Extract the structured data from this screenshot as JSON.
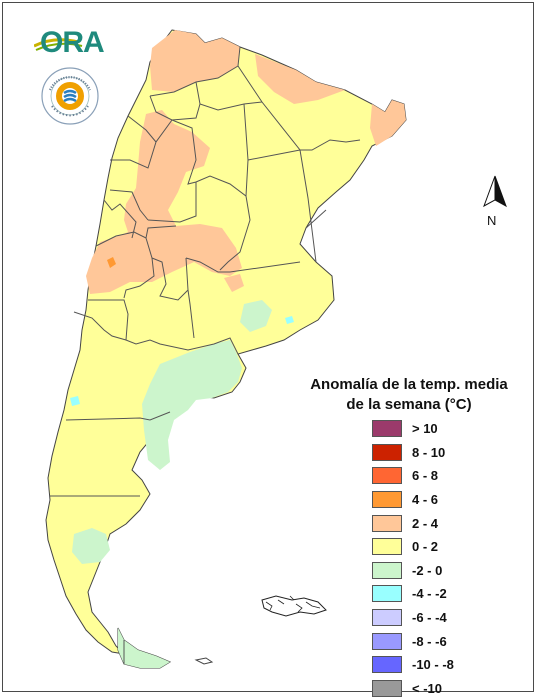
{
  "logos": {
    "ora_text": "ORA",
    "smn_ring_text": "SERVICIO METEOROLOGICO NACIONAL",
    "smn_country": "ARGENTINA"
  },
  "compass": {
    "label": "N"
  },
  "legend": {
    "title_line1": "Anomalía de la temp. media",
    "title_line2": "de la semana (°C)",
    "items": [
      {
        "label": "> 10",
        "color": "#9b3a6b"
      },
      {
        "label": "8 - 10",
        "color": "#cc2200"
      },
      {
        "label": "6 - 8",
        "color": "#ff6633"
      },
      {
        "label": "4 - 6",
        "color": "#ff9933"
      },
      {
        "label": "2 - 4",
        "color": "#ffc799"
      },
      {
        "label": "0 - 2",
        "color": "#ffff99"
      },
      {
        "label": "-2 - 0",
        "color": "#ccf5cc"
      },
      {
        "label": "-4 - -2",
        "color": "#99ffff"
      },
      {
        "label": "-6 - -4",
        "color": "#ccccff"
      },
      {
        "label": "-8 - -6",
        "color": "#9999ff"
      },
      {
        "label": "-10 - -8",
        "color": "#6666ff"
      },
      {
        "label": "< -10",
        "color": "#999999"
      }
    ]
  },
  "map": {
    "base_color": "#ffff99",
    "warm_color": "#ffc799",
    "hot_color": "#ff9933",
    "cool_color": "#ccf5cc",
    "cold_color": "#99ffff",
    "border_color": "#555555"
  }
}
